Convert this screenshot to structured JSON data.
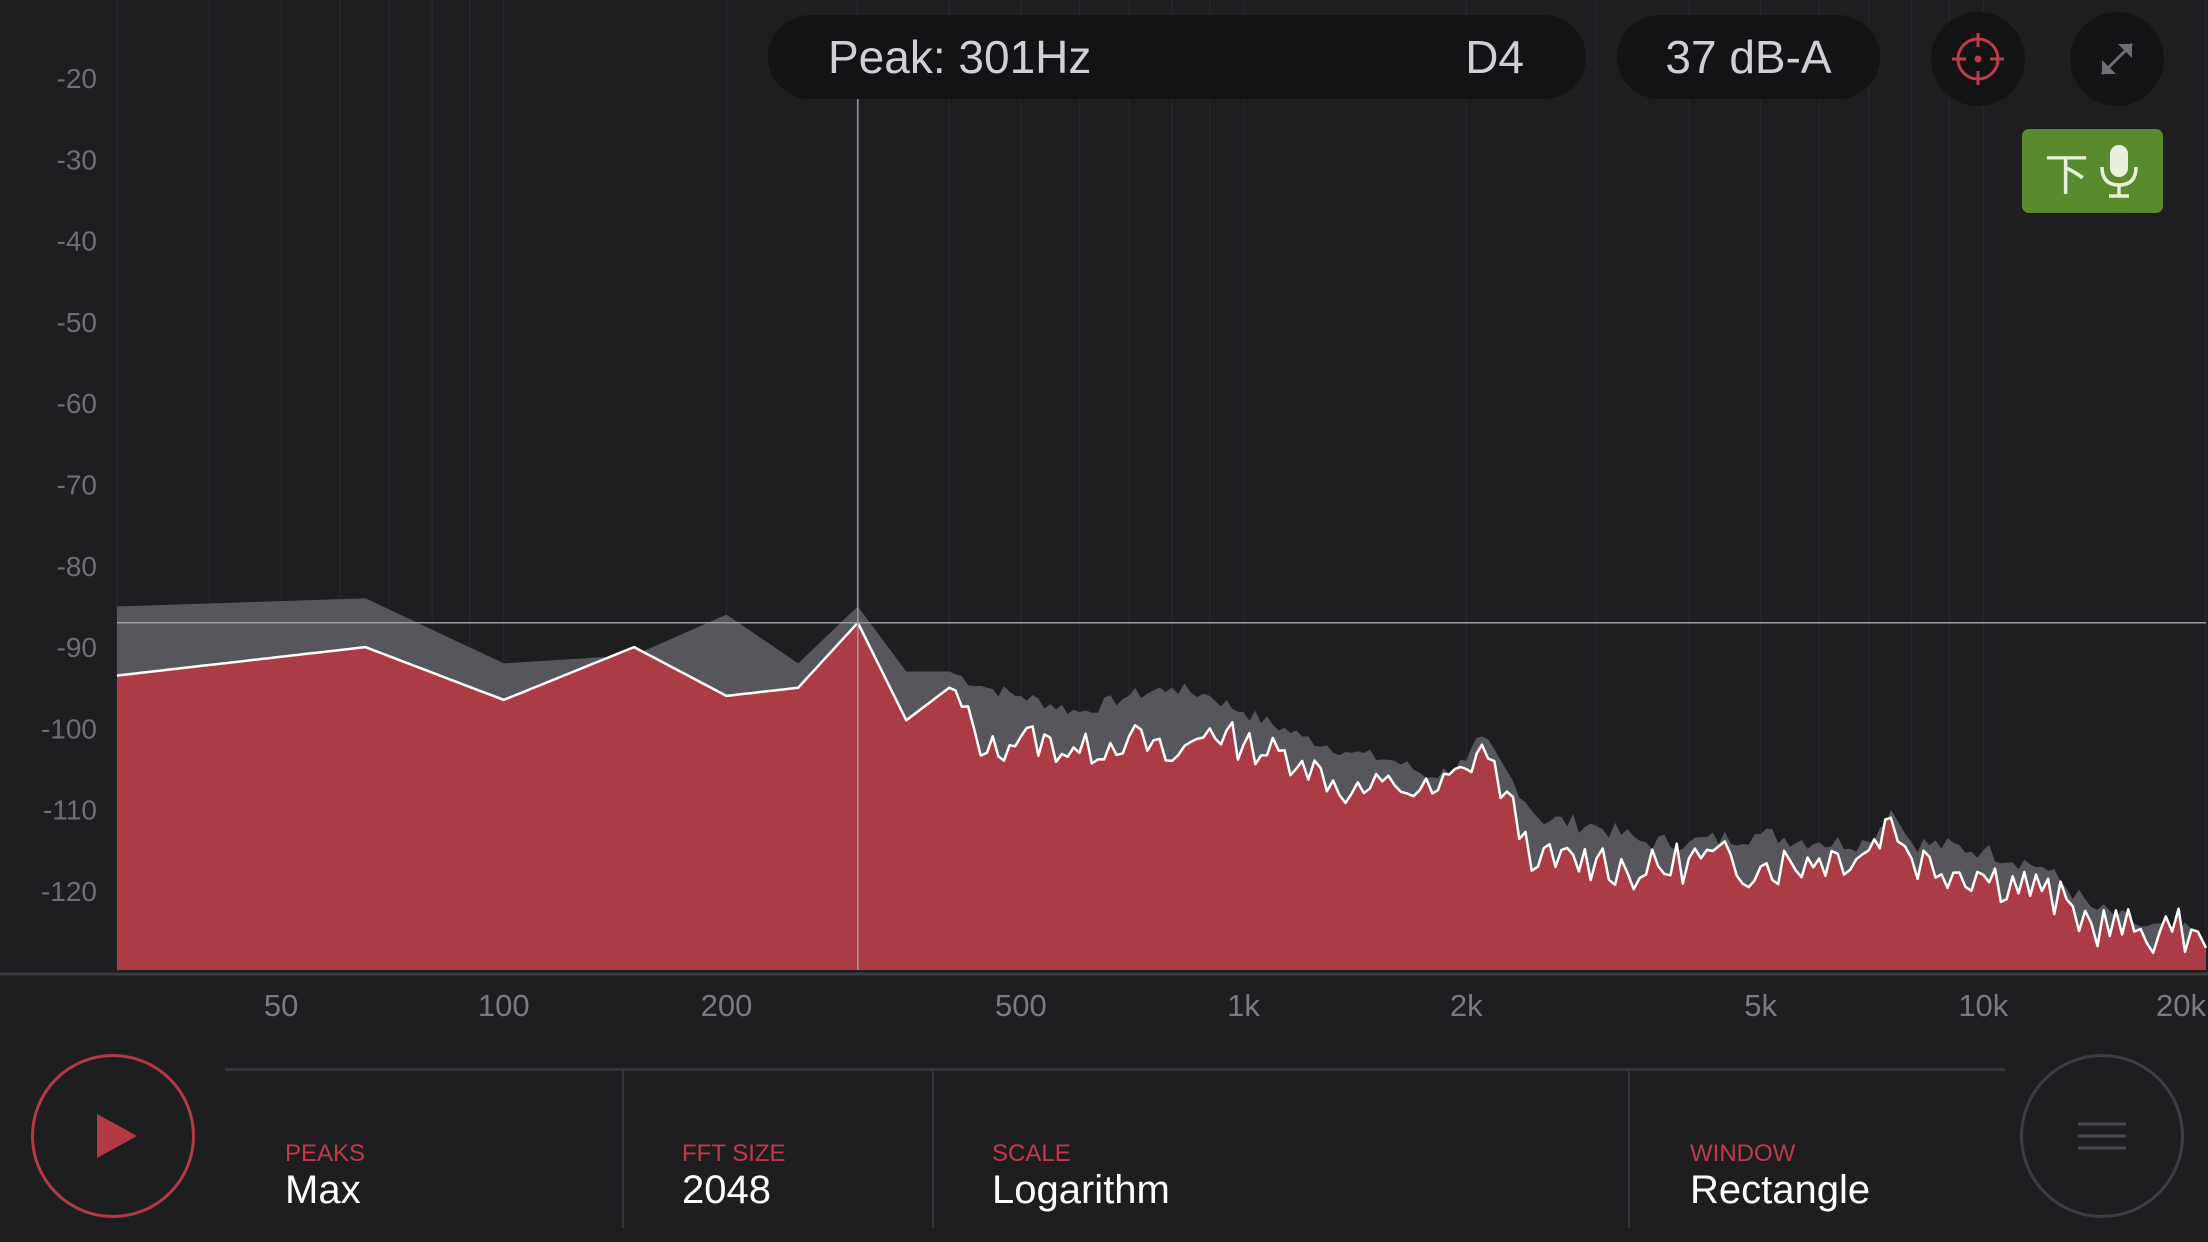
{
  "header": {
    "peak_label": "Peak: 301Hz",
    "note": "D4",
    "level": "37 dB-A"
  },
  "icons": {
    "target": "crosshair-icon",
    "expand": "expand-icon",
    "mic": "microphone-icon",
    "mic_glyph": "下",
    "play": "play-icon",
    "menu": "menu-icon"
  },
  "colors": {
    "fill": "#ab3c45",
    "peak_hold": "#56565c",
    "accent": "#c03b4a",
    "mic_button": "#5a8a2e"
  },
  "settings": [
    {
      "label": "PEAKS",
      "value": "Max"
    },
    {
      "label": "FFT SIZE",
      "value": "2048"
    },
    {
      "label": "SCALE",
      "value": "Logarithm"
    },
    {
      "label": "WINDOW",
      "value": "Rectangle"
    }
  ],
  "chart_data": {
    "type": "area",
    "x_scale": "log",
    "xlim": [
      30,
      20000
    ],
    "ylim": [
      -130,
      -15
    ],
    "x_tick_labels": [
      "50",
      "100",
      "200",
      "500",
      "1k",
      "2k",
      "5k",
      "10k",
      "20k"
    ],
    "x_tick_values": [
      50,
      100,
      200,
      500,
      1000,
      2000,
      5000,
      10000,
      20000
    ],
    "y_tick_labels": [
      "-20",
      "-30",
      "-40",
      "-50",
      "-60",
      "-70",
      "-80",
      "-90",
      "-100",
      "-110",
      "-120"
    ],
    "y_tick_values": [
      -20,
      -30,
      -40,
      -50,
      -60,
      -70,
      -80,
      -90,
      -100,
      -110,
      -120
    ],
    "cursor": {
      "x": 301,
      "y": -87
    },
    "series": [
      {
        "x": [
          30,
          65,
          100,
          150,
          200,
          250,
          301,
          350,
          400,
          450,
          500,
          600,
          700,
          800,
          900,
          1000,
          1200,
          1400,
          1600,
          1800,
          2000,
          2100,
          2500,
          3000,
          3500,
          4000,
          5000,
          6000,
          7000,
          7500,
          8000,
          10000,
          12000,
          14000,
          16000,
          18000,
          19500,
          20000
        ],
        "values": [
          -93.5,
          -90,
          -96.5,
          -90,
          -96,
          -95,
          -87,
          -99,
          -95,
          -103,
          -101,
          -103,
          -101,
          -104,
          -100,
          -102,
          -104,
          -108,
          -107,
          -108,
          -105,
          -102,
          -117,
          -116,
          -118,
          -116,
          -117,
          -116,
          -115,
          -111,
          -116,
          -118,
          -120,
          -124,
          -125,
          -125,
          -125,
          -127
        ]
      },
      {
        "x": [
          30,
          65,
          100,
          150,
          200,
          250,
          301,
          350,
          400,
          450,
          500,
          600,
          700,
          800,
          900,
          1000,
          1200,
          1400,
          1600,
          1800,
          2000,
          2100,
          2500,
          3000,
          3500,
          4000,
          5000,
          6000,
          7000,
          7500,
          8000,
          10000,
          12000,
          14000,
          16000,
          18000,
          19500,
          20000
        ],
        "values": [
          -85,
          -84,
          -92,
          -91,
          -86,
          -92,
          -85,
          -93,
          -93,
          -95,
          -96,
          -98,
          -96,
          -95,
          -96,
          -98,
          -101,
          -103,
          -104,
          -106,
          -104,
          -101,
          -111,
          -112,
          -114,
          -114,
          -113,
          -114,
          -114,
          -110,
          -114,
          -115,
          -117,
          -122,
          -124,
          -125,
          -125,
          -127
        ]
      }
    ]
  }
}
